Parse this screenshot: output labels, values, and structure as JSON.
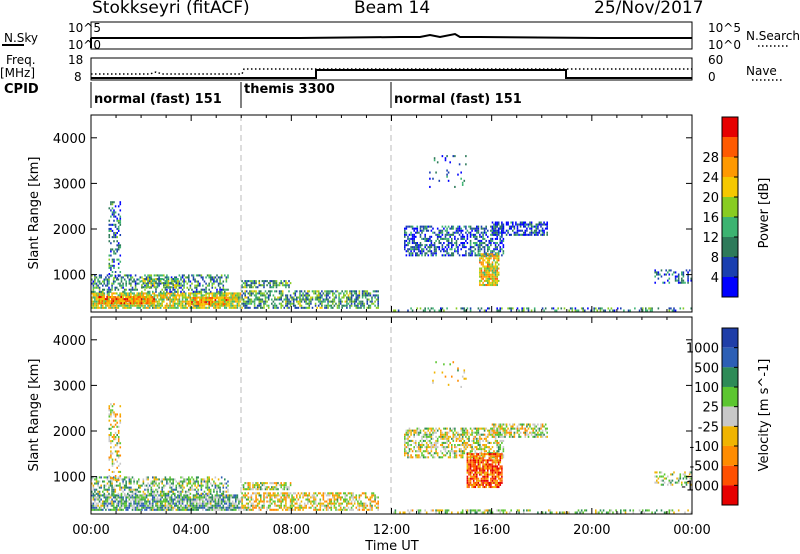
{
  "header": {
    "station": "Stokkseyri (fitACF)",
    "beam": "Beam 14",
    "date": "25/Nov/2017"
  },
  "top_panels": {
    "nsky_label": "N.Sky",
    "nsky_ticks": [
      "10^5",
      "10^0"
    ],
    "nsearch_label": "N.Search",
    "nsearch_ticks": [
      "10^5",
      "10^0"
    ],
    "freq_label": "Freq.",
    "freq_unit": "[MHz]",
    "freq_ticks": [
      "18",
      "8"
    ],
    "nave_label": "Nave",
    "nave_ticks": [
      "60",
      "0"
    ],
    "cpid_label": "CPID",
    "modes": [
      {
        "name": "normal (fast) 151",
        "start_hour": 0
      },
      {
        "name": "themis 3300",
        "start_hour": 6
      },
      {
        "name": "normal (fast) 151",
        "start_hour": 12
      }
    ]
  },
  "chart_data": [
    {
      "type": "heatmap",
      "title": "",
      "quantity": "Power",
      "ylabel": "Slant Range [km]",
      "xlabel": "",
      "ylim": [
        180,
        4500
      ],
      "xlim_hours": [
        0,
        24
      ],
      "yticks": [
        1000,
        2000,
        3000,
        4000
      ],
      "colorbar": {
        "label": "Power [dB]",
        "ticks": [
          "4",
          "8",
          "12",
          "16",
          "20",
          "24",
          "28"
        ],
        "colors": [
          "#0000ff",
          "#1a3fb0",
          "#2e7a5a",
          "#3cb371",
          "#88cc22",
          "#f5c800",
          "#ff9900",
          "#ff5a00",
          "#e60000"
        ]
      },
      "regions": [
        {
          "t0": 0.0,
          "t1": 6.0,
          "r0": 250,
          "r1": 600,
          "density": 0.85,
          "mean": 0.55
        },
        {
          "t0": 0.3,
          "t1": 2.5,
          "r0": 350,
          "r1": 520,
          "density": 0.9,
          "mean": 0.75
        },
        {
          "t0": 4.0,
          "t1": 5.5,
          "r0": 330,
          "r1": 480,
          "density": 0.85,
          "mean": 0.7
        },
        {
          "t0": 0.0,
          "t1": 5.5,
          "r0": 600,
          "r1": 1000,
          "density": 0.5,
          "mean": 0.3
        },
        {
          "t0": 0.7,
          "t1": 1.2,
          "r0": 900,
          "r1": 2600,
          "density": 0.35,
          "mean": 0.25
        },
        {
          "t0": 2.0,
          "t1": 3.5,
          "r0": 700,
          "r1": 900,
          "density": 0.5,
          "mean": 0.4
        },
        {
          "t0": 6.0,
          "t1": 11.5,
          "r0": 250,
          "r1": 650,
          "density": 0.6,
          "mean": 0.35
        },
        {
          "t0": 6.0,
          "t1": 8.0,
          "r0": 700,
          "r1": 850,
          "density": 0.6,
          "mean": 0.35
        },
        {
          "t0": 12.5,
          "t1": 16.5,
          "r0": 1400,
          "r1": 2050,
          "density": 0.55,
          "mean": 0.2
        },
        {
          "t0": 16.0,
          "t1": 18.2,
          "r0": 1850,
          "r1": 2150,
          "density": 0.6,
          "mean": 0.15
        },
        {
          "t0": 15.5,
          "t1": 16.3,
          "r0": 750,
          "r1": 1450,
          "density": 0.8,
          "mean": 0.6
        },
        {
          "t0": 12.0,
          "t1": 24.0,
          "r0": 190,
          "r1": 280,
          "density": 0.35,
          "mean": 0.3
        },
        {
          "t0": 22.5,
          "t1": 24.0,
          "r0": 800,
          "r1": 1100,
          "density": 0.35,
          "mean": 0.2
        },
        {
          "t0": 13.5,
          "t1": 15.0,
          "r0": 2900,
          "r1": 3600,
          "density": 0.06,
          "mean": 0.2
        }
      ]
    },
    {
      "type": "heatmap",
      "title": "",
      "quantity": "Velocity",
      "ylabel": "Slant Range [km]",
      "xlabel": "Time UT",
      "ylim": [
        180,
        4500
      ],
      "xlim_hours": [
        0,
        24
      ],
      "xticks": [
        "00:00",
        "04:00",
        "08:00",
        "12:00",
        "16:00",
        "20:00",
        "00:00"
      ],
      "yticks": [
        1000,
        2000,
        3000,
        4000
      ],
      "colorbar": {
        "label": "Velocity [m s^-1]",
        "ticks": [
          "1000",
          "500",
          "100",
          "25",
          "-25",
          "-100",
          "-500",
          "-1000"
        ],
        "colors": [
          "#1f3ea8",
          "#2c5fb5",
          "#2e8b57",
          "#5cc630",
          "#c8c8c8",
          "#f0b400",
          "#ff8c00",
          "#ff5000",
          "#e60000"
        ]
      },
      "regions": [
        {
          "t0": 0.0,
          "t1": 6.0,
          "r0": 250,
          "r1": 600,
          "density": 0.85,
          "mean": 0.35
        },
        {
          "t0": 0.0,
          "t1": 5.5,
          "r0": 600,
          "r1": 1000,
          "density": 0.5,
          "mean": 0.4
        },
        {
          "t0": 0.7,
          "t1": 1.2,
          "r0": 900,
          "r1": 2600,
          "density": 0.35,
          "mean": 0.55
        },
        {
          "t0": 6.0,
          "t1": 11.5,
          "r0": 250,
          "r1": 650,
          "density": 0.6,
          "mean": 0.55
        },
        {
          "t0": 6.0,
          "t1": 8.0,
          "r0": 700,
          "r1": 850,
          "density": 0.6,
          "mean": 0.5
        },
        {
          "t0": 12.5,
          "t1": 16.5,
          "r0": 1400,
          "r1": 2050,
          "density": 0.55,
          "mean": 0.5
        },
        {
          "t0": 16.0,
          "t1": 18.2,
          "r0": 1850,
          "r1": 2150,
          "density": 0.6,
          "mean": 0.5
        },
        {
          "t0": 15.0,
          "t1": 16.4,
          "r0": 750,
          "r1": 1500,
          "density": 0.8,
          "mean": 0.8
        },
        {
          "t0": 12.0,
          "t1": 24.0,
          "r0": 190,
          "r1": 280,
          "density": 0.35,
          "mean": 0.45
        },
        {
          "t0": 22.5,
          "t1": 24.0,
          "r0": 800,
          "r1": 1100,
          "density": 0.35,
          "mean": 0.45
        },
        {
          "t0": 13.5,
          "t1": 15.0,
          "r0": 2900,
          "r1": 3600,
          "density": 0.06,
          "mean": 0.5
        }
      ]
    }
  ]
}
